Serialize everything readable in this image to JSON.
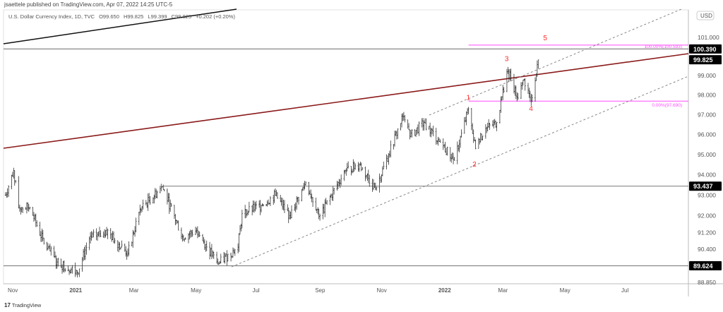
{
  "header": {
    "publisher_line": "jsaettele published on TradingView.com, Apr 07, 2022 14:25 UTC-5",
    "symbol": "U.S. Dollar Currency Index, 1D, TVC",
    "open": "O99.650",
    "high": "H99.825",
    "low": "L99.399",
    "close": "C99.825",
    "change": "+0.202 (+0.20%)"
  },
  "footer": {
    "logo_text": "TradingView",
    "logo_mark": "17"
  },
  "chart_data": {
    "type": "ohlc",
    "scale": "log",
    "currency_button": "USD",
    "ylim": [
      88.85,
      102.0
    ],
    "ytick_labels": [
      "101.000",
      "99.000",
      "98.000",
      "97.000",
      "96.000",
      "95.000",
      "94.000",
      "93.000",
      "92.000",
      "91.200",
      "90.400",
      "88.850"
    ],
    "xtick_labels": [
      {
        "label": "Nov",
        "date": "2020-11-01",
        "bold": false
      },
      {
        "label": "2021",
        "date": "2021-01-01",
        "bold": true
      },
      {
        "label": "Mar",
        "date": "2021-03-01",
        "bold": false
      },
      {
        "label": "May",
        "date": "2021-05-01",
        "bold": false
      },
      {
        "label": "Jul",
        "date": "2021-07-01",
        "bold": false
      },
      {
        "label": "Sep",
        "date": "2021-09-01",
        "bold": false
      },
      {
        "label": "Nov",
        "date": "2021-11-01",
        "bold": false
      },
      {
        "label": "2022",
        "date": "2022-01-01",
        "bold": true
      },
      {
        "label": "Mar",
        "date": "2022-03-01",
        "bold": false
      },
      {
        "label": "May",
        "date": "2022-05-01",
        "bold": false
      },
      {
        "label": "Jul",
        "date": "2022-07-01",
        "bold": false
      }
    ],
    "price_path": [
      [
        "2020-10-27",
        93.0
      ],
      [
        "2020-11-04",
        94.2
      ],
      [
        "2020-11-09",
        92.4
      ],
      [
        "2020-11-20",
        92.4
      ],
      [
        "2020-12-04",
        90.7
      ],
      [
        "2020-12-17",
        89.8
      ],
      [
        "2021-01-06",
        89.3
      ],
      [
        "2021-01-18",
        90.9
      ],
      [
        "2021-02-03",
        91.3
      ],
      [
        "2021-02-25",
        90.2
      ],
      [
        "2021-03-09",
        92.3
      ],
      [
        "2021-03-31",
        93.4
      ],
      [
        "2021-04-20",
        91.0
      ],
      [
        "2021-05-04",
        91.3
      ],
      [
        "2021-05-25",
        89.7
      ],
      [
        "2021-06-14",
        90.5
      ],
      [
        "2021-06-18",
        92.1
      ],
      [
        "2021-07-07",
        92.5
      ],
      [
        "2021-07-21",
        93.0
      ],
      [
        "2021-08-04",
        92.0
      ],
      [
        "2021-08-20",
        93.6
      ],
      [
        "2021-09-03",
        92.0
      ],
      [
        "2021-09-28",
        94.2
      ],
      [
        "2021-10-12",
        94.5
      ],
      [
        "2021-10-28",
        93.3
      ],
      [
        "2021-11-10",
        95.0
      ],
      [
        "2021-11-24",
        96.9
      ],
      [
        "2021-12-01",
        95.9
      ],
      [
        "2021-12-15",
        96.6
      ],
      [
        "2021-12-31",
        95.6
      ],
      [
        "2022-01-14",
        94.7
      ],
      [
        "2022-01-28",
        97.3
      ],
      [
        "2022-02-04",
        95.3
      ],
      [
        "2022-02-14",
        96.3
      ],
      [
        "2022-02-25",
        96.6
      ],
      [
        "2022-03-07",
        99.2
      ],
      [
        "2022-03-11",
        98.9
      ],
      [
        "2022-03-17",
        97.9
      ],
      [
        "2022-03-24",
        98.8
      ],
      [
        "2022-03-31",
        97.7
      ],
      [
        "2022-04-07",
        99.825
      ]
    ],
    "price_tags": [
      {
        "label": "100.390",
        "value": 100.39,
        "line_from": "2020-10-25"
      },
      {
        "label": "99.825",
        "value": 99.825,
        "line_from": null
      },
      {
        "label": "93.437",
        "value": 93.437,
        "line_from": "2021-03-31"
      },
      {
        "label": "89.624",
        "value": 89.624,
        "line_from": "2020-10-25"
      }
    ],
    "fib": [
      {
        "label": "100.00%(100.593)",
        "value": 100.593
      },
      {
        "label": "0.00%(97.690)",
        "value": 97.69
      }
    ],
    "wave_labels": [
      {
        "label": "1",
        "date": "2022-01-28",
        "value": 97.75
      },
      {
        "label": "2",
        "date": "2022-02-03",
        "value": 94.4
      },
      {
        "label": "3",
        "date": "2022-03-07",
        "value": 99.75
      },
      {
        "label": "4",
        "date": "2022-03-31",
        "value": 97.2
      },
      {
        "label": "5",
        "date": "2022-04-14",
        "value": 100.85
      }
    ],
    "colors": {
      "bars": "#333333",
      "trendline_red": "#8b1a1a",
      "fib": "#ff4dff",
      "wave": "#ff2a2a",
      "tag_bg": "#000000",
      "grid_line": "#888888",
      "channel": "#888888"
    }
  }
}
